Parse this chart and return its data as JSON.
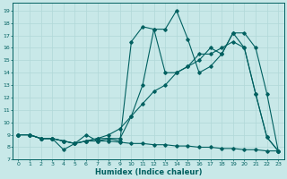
{
  "xlabel": "Humidex (Indice chaleur)",
  "bg_color": "#c8e8e8",
  "grid_color": "#b0d8d8",
  "line_color": "#006060",
  "xlim": [
    -0.5,
    23.5
  ],
  "ylim": [
    7,
    19.6
  ],
  "yticks": [
    7,
    8,
    9,
    10,
    11,
    12,
    13,
    14,
    15,
    16,
    17,
    18,
    19
  ],
  "xticks": [
    0,
    1,
    2,
    3,
    4,
    5,
    6,
    7,
    8,
    9,
    10,
    11,
    12,
    13,
    14,
    15,
    16,
    17,
    18,
    19,
    20,
    21,
    22,
    23
  ],
  "series": [
    {
      "x": [
        0,
        1,
        2,
        3,
        4,
        5,
        6,
        7,
        8,
        9,
        10,
        11,
        12,
        13,
        14,
        15,
        16,
        17,
        18,
        19,
        20,
        21,
        22,
        23
      ],
      "y": [
        9.0,
        9.0,
        8.7,
        8.7,
        8.5,
        8.3,
        8.5,
        8.5,
        8.5,
        8.4,
        8.3,
        8.3,
        8.2,
        8.2,
        8.1,
        8.1,
        8.0,
        8.0,
        7.9,
        7.9,
        7.8,
        7.8,
        7.7,
        7.7
      ]
    },
    {
      "x": [
        0,
        1,
        2,
        3,
        4,
        5,
        6,
        7,
        8,
        9,
        10,
        11,
        12,
        13,
        14,
        15,
        16,
        17,
        18,
        19,
        20,
        21,
        22,
        23
      ],
      "y": [
        9.0,
        9.0,
        8.7,
        8.7,
        8.5,
        8.3,
        8.5,
        8.7,
        9.0,
        9.5,
        10.5,
        11.5,
        12.5,
        13.0,
        14.0,
        14.5,
        15.5,
        15.5,
        16.0,
        16.5,
        16.0,
        12.3,
        8.8,
        7.7
      ]
    },
    {
      "x": [
        0,
        1,
        2,
        3,
        4,
        5,
        6,
        7,
        8,
        9,
        10,
        11,
        12,
        13,
        14,
        15,
        16,
        17,
        18,
        19,
        20,
        21,
        22,
        23
      ],
      "y": [
        9.0,
        9.0,
        8.7,
        8.7,
        8.5,
        8.3,
        8.5,
        8.7,
        8.7,
        8.7,
        10.5,
        13.0,
        17.5,
        17.5,
        19.0,
        16.7,
        14.0,
        14.5,
        15.5,
        17.2,
        17.2,
        16.0,
        12.3,
        7.7
      ]
    },
    {
      "x": [
        0,
        1,
        2,
        3,
        4,
        5,
        6,
        7,
        8,
        9,
        10,
        11,
        12,
        13,
        14,
        15,
        16,
        17,
        18,
        19,
        20,
        21,
        22,
        23
      ],
      "y": [
        9.0,
        9.0,
        8.7,
        8.7,
        7.8,
        8.3,
        9.0,
        8.5,
        8.7,
        8.5,
        16.5,
        17.7,
        17.5,
        14.0,
        14.0,
        14.5,
        15.0,
        16.0,
        15.5,
        17.2,
        16.0,
        12.3,
        8.8,
        7.7
      ]
    }
  ]
}
